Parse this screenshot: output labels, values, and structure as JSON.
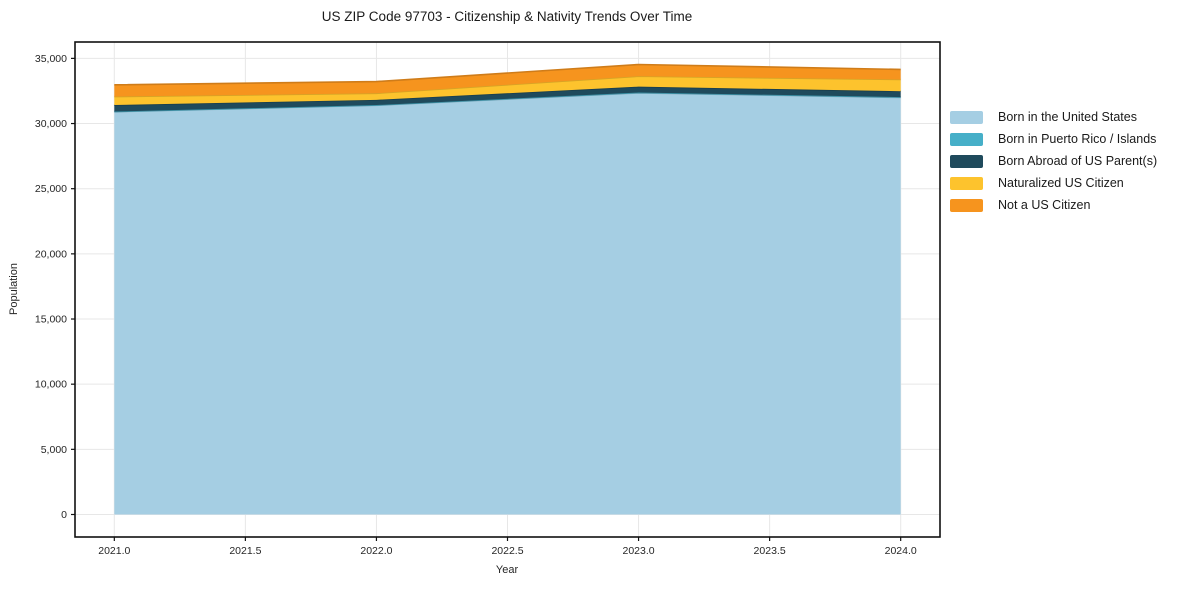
{
  "chart_data": {
    "type": "area",
    "stacked": true,
    "title": "US ZIP Code 97703 - Citizenship & Nativity Trends Over Time",
    "xlabel": "Year",
    "ylabel": "Population",
    "x": [
      2021,
      2022,
      2023,
      2024
    ],
    "series": [
      {
        "name": "Born in the United States",
        "color": "#a5cee3",
        "values": [
          30900,
          31400,
          32350,
          32000
        ]
      },
      {
        "name": "Born in Puerto Rico / Islands",
        "color": "#46afc8",
        "values": [
          20,
          20,
          30,
          30
        ]
      },
      {
        "name": "Born Abroad of US Parent(s)",
        "color": "#1f4a5c",
        "values": [
          500,
          400,
          450,
          450
        ]
      },
      {
        "name": "Naturalized US Citizen",
        "color": "#fdc32d",
        "values": [
          650,
          500,
          800,
          900
        ]
      },
      {
        "name": "Not a US Citizen",
        "color": "#f6941e",
        "values": [
          900,
          900,
          900,
          770
        ]
      }
    ],
    "totals": [
      32970,
      33220,
      34530,
      34150
    ],
    "xticks": {
      "values": [
        2021.0,
        2021.5,
        2022.0,
        2022.5,
        2023.0,
        2023.5,
        2024.0
      ],
      "labels": [
        "2021.0",
        "2021.5",
        "2022.0",
        "2022.5",
        "2023.0",
        "2023.5",
        "2024.0"
      ]
    },
    "yticks": {
      "values": [
        0,
        5000,
        10000,
        15000,
        20000,
        25000,
        30000,
        35000
      ],
      "labels": [
        "0",
        "5,000",
        "10,000",
        "15,000",
        "20,000",
        "25,000",
        "30,000",
        "35,000"
      ]
    },
    "xlim": [
      2020.85,
      2024.15
    ],
    "ylim": [
      -1727,
      36257
    ],
    "grid": true,
    "legend_position": "right-outside"
  },
  "style_colors": {
    "grid": "#e7e7e7",
    "spine": "#111111",
    "tick_text": "#262626"
  }
}
